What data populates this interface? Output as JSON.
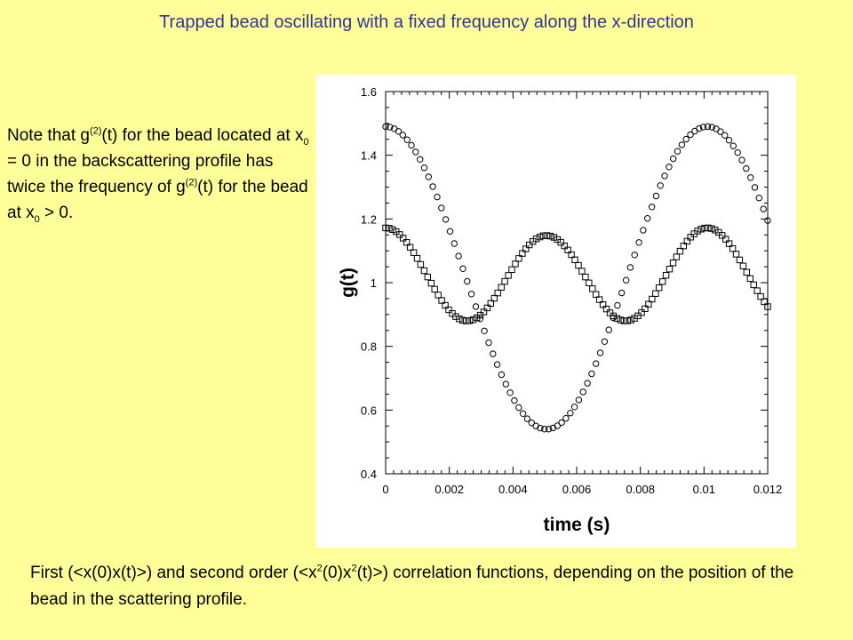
{
  "slide": {
    "title": "Trapped bead oscillating with a fixed frequency along the x-direction",
    "note": {
      "s1": "Note that g",
      "sup1": "(2)",
      "s2": "(t) for the bead located at x",
      "sub1": "0",
      "s3": " = 0 in the backscattering profile has twice the frequency of g",
      "sup2": "(2)",
      "s4": "(t) for the bead at x",
      "sub2": "0",
      "s5": " > 0."
    },
    "caption": {
      "c1": "First (<x(0)x(t)>) and second order (<x",
      "sup1": "2",
      "c2": "(0)x",
      "sup2": "2",
      "c3": "(t)>) correlation functions, depending on the position of the bead in the scattering profile."
    }
  },
  "chart_data": {
    "type": "scatter",
    "xlabel": "time (s)",
    "ylabel": "g(t)",
    "xlim": [
      0,
      0.012
    ],
    "ylim": [
      0.4,
      1.6
    ],
    "x_ticks": [
      "0",
      "0.002",
      "0.004",
      "0.006",
      "0.008",
      "0.01",
      "0.012"
    ],
    "y_ticks": [
      "0.4",
      "0.6",
      "0.8",
      "1",
      "1.2",
      "1.4",
      "1.6"
    ],
    "grid": false,
    "series": [
      {
        "marker": "circle",
        "x_range": [
          0,
          0.012
        ],
        "n_points": 90,
        "values_described": "Starts at 1.50 at t=0, decreases to a minimum of about 0.54 at t≈0.0051 s, rises back to about 1.49 at t≈0.0101 s, then declines to about 1.18 at t=0.012 s (period ≈ 0.0101 s).",
        "sample_points": [
          [
            0,
            1.5
          ],
          [
            0.00252,
            1.02
          ],
          [
            0.00505,
            0.54
          ],
          [
            0.00757,
            1.02
          ],
          [
            0.0101,
            1.49
          ],
          [
            0.012,
            1.18
          ]
        ]
      },
      {
        "marker": "square",
        "x_range": [
          0,
          0.012
        ],
        "n_points": 110,
        "values_described": "Starts at 1.18 at t=0, minima of about 0.875 at t≈0.0026 s and t≈0.0077 s, maxima of about 1.13 at t≈0.0051 s and 1.16 at t≈0.0101 s, ends near 0.92 at t=0.012 s (half the period of the circle series).",
        "sample_points": [
          [
            0,
            1.18
          ],
          [
            0.00258,
            0.875
          ],
          [
            0.00512,
            1.13
          ],
          [
            0.00767,
            0.875
          ],
          [
            0.0101,
            1.16
          ],
          [
            0.012,
            0.92
          ]
        ]
      }
    ]
  }
}
